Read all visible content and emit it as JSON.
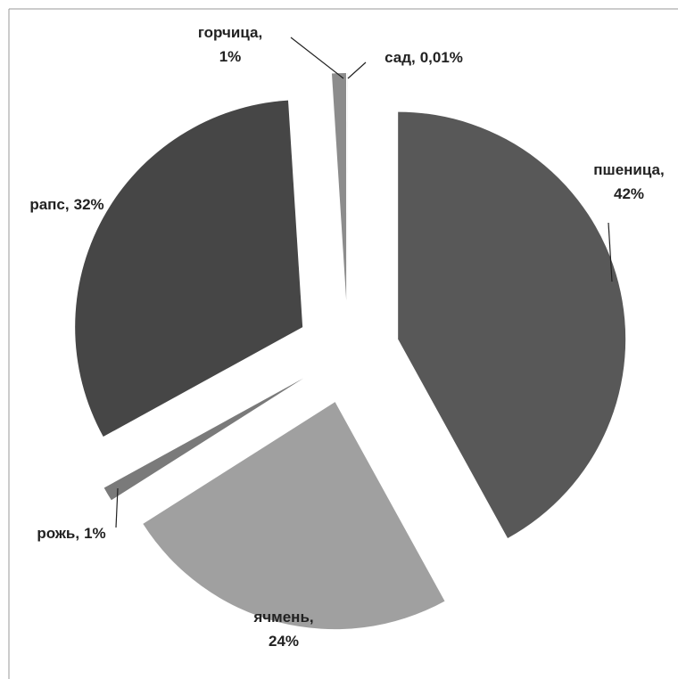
{
  "chart_data": {
    "type": "pie",
    "categories": [
      "пшеница,",
      "ячмень,",
      "рожь,",
      "рапс,",
      "горчица,",
      "сад,"
    ],
    "values": [
      42,
      24,
      1,
      32,
      1,
      0.01
    ],
    "value_labels": [
      "42%",
      "24%",
      "1%",
      "32%",
      "1%",
      "0,01%"
    ],
    "colors": [
      "#585858",
      "#a0a0a0",
      "#7a7a7a",
      "#464646",
      "#8c8c8c",
      "#b4b4b4"
    ]
  }
}
